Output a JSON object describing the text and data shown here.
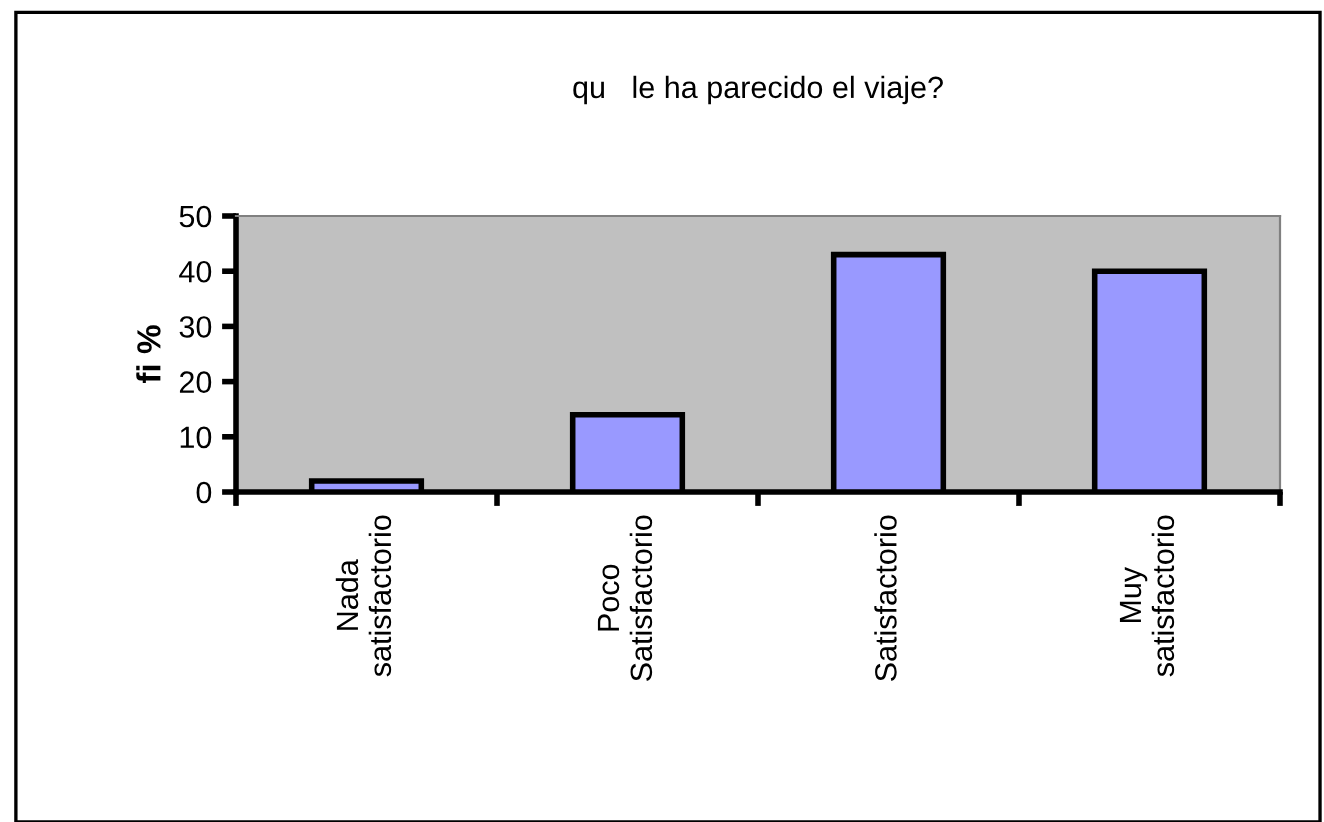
{
  "chart_data": {
    "type": "bar",
    "title": "qu   le ha parecido el viaje?",
    "ylabel": "fi %",
    "categories": [
      "Nada\nsatisfactorio",
      "Poco\nSatisfactorio",
      "Satisfactorio",
      "Muy\nsatisfactorio"
    ],
    "values": [
      2,
      14,
      43,
      40
    ],
    "color": "#9999ff",
    "ylim": [
      0,
      50
    ],
    "yticks": [
      0,
      10,
      20,
      30,
      40,
      50
    ],
    "grid": false,
    "legend": false
  }
}
